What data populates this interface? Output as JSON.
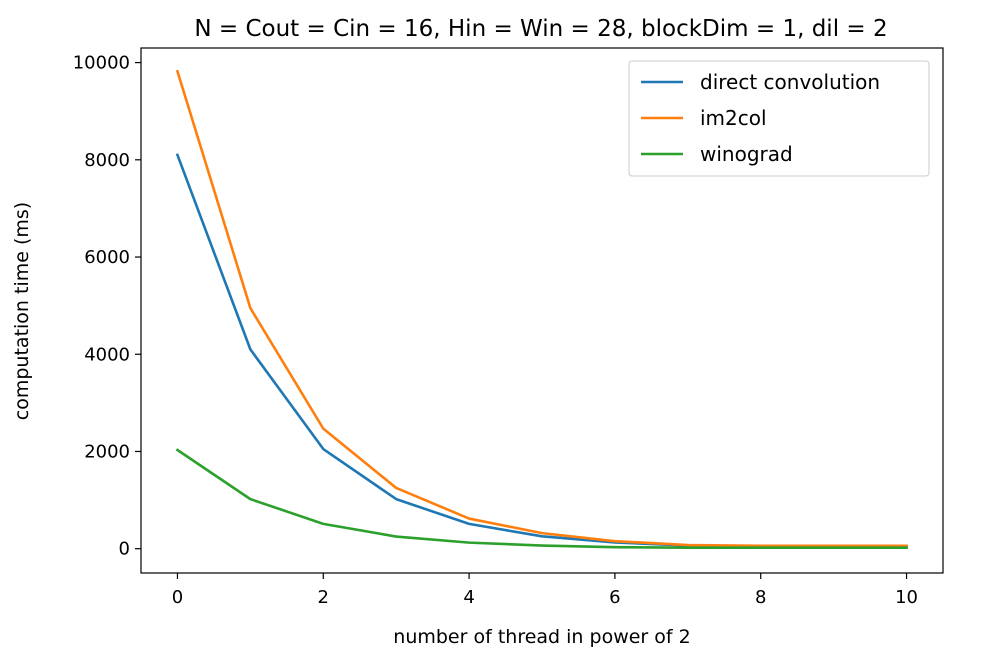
{
  "chart_data": {
    "type": "line",
    "title": "N = Cout = Cin = 16, Hin = Win = 28, blockDim = 1, dil = 2",
    "xlabel": "number of thread in power of 2",
    "ylabel": "computation time (ms)",
    "x": [
      0,
      1,
      2,
      3,
      4,
      5,
      6,
      7,
      8,
      9,
      10
    ],
    "xlim": [
      -0.5,
      10.5
    ],
    "ylim": [
      -500,
      10300
    ],
    "x_ticks": [
      0,
      2,
      4,
      6,
      8,
      10
    ],
    "y_ticks": [
      0,
      2000,
      4000,
      6000,
      8000,
      10000
    ],
    "grid": false,
    "legend_position": "top-right",
    "series": [
      {
        "name": "direct convolution",
        "color": "#1f77b4",
        "values": [
          8100,
          4100,
          2050,
          1020,
          510,
          255,
          128,
          64,
          40,
          40,
          40
        ]
      },
      {
        "name": "im2col",
        "color": "#ff7f0e",
        "values": [
          9820,
          4950,
          2470,
          1250,
          620,
          320,
          155,
          75,
          60,
          60,
          60
        ]
      },
      {
        "name": "winograd",
        "color": "#2ca02c",
        "values": [
          2030,
          1020,
          510,
          250,
          125,
          65,
          32,
          20,
          20,
          20,
          20
        ]
      }
    ]
  }
}
